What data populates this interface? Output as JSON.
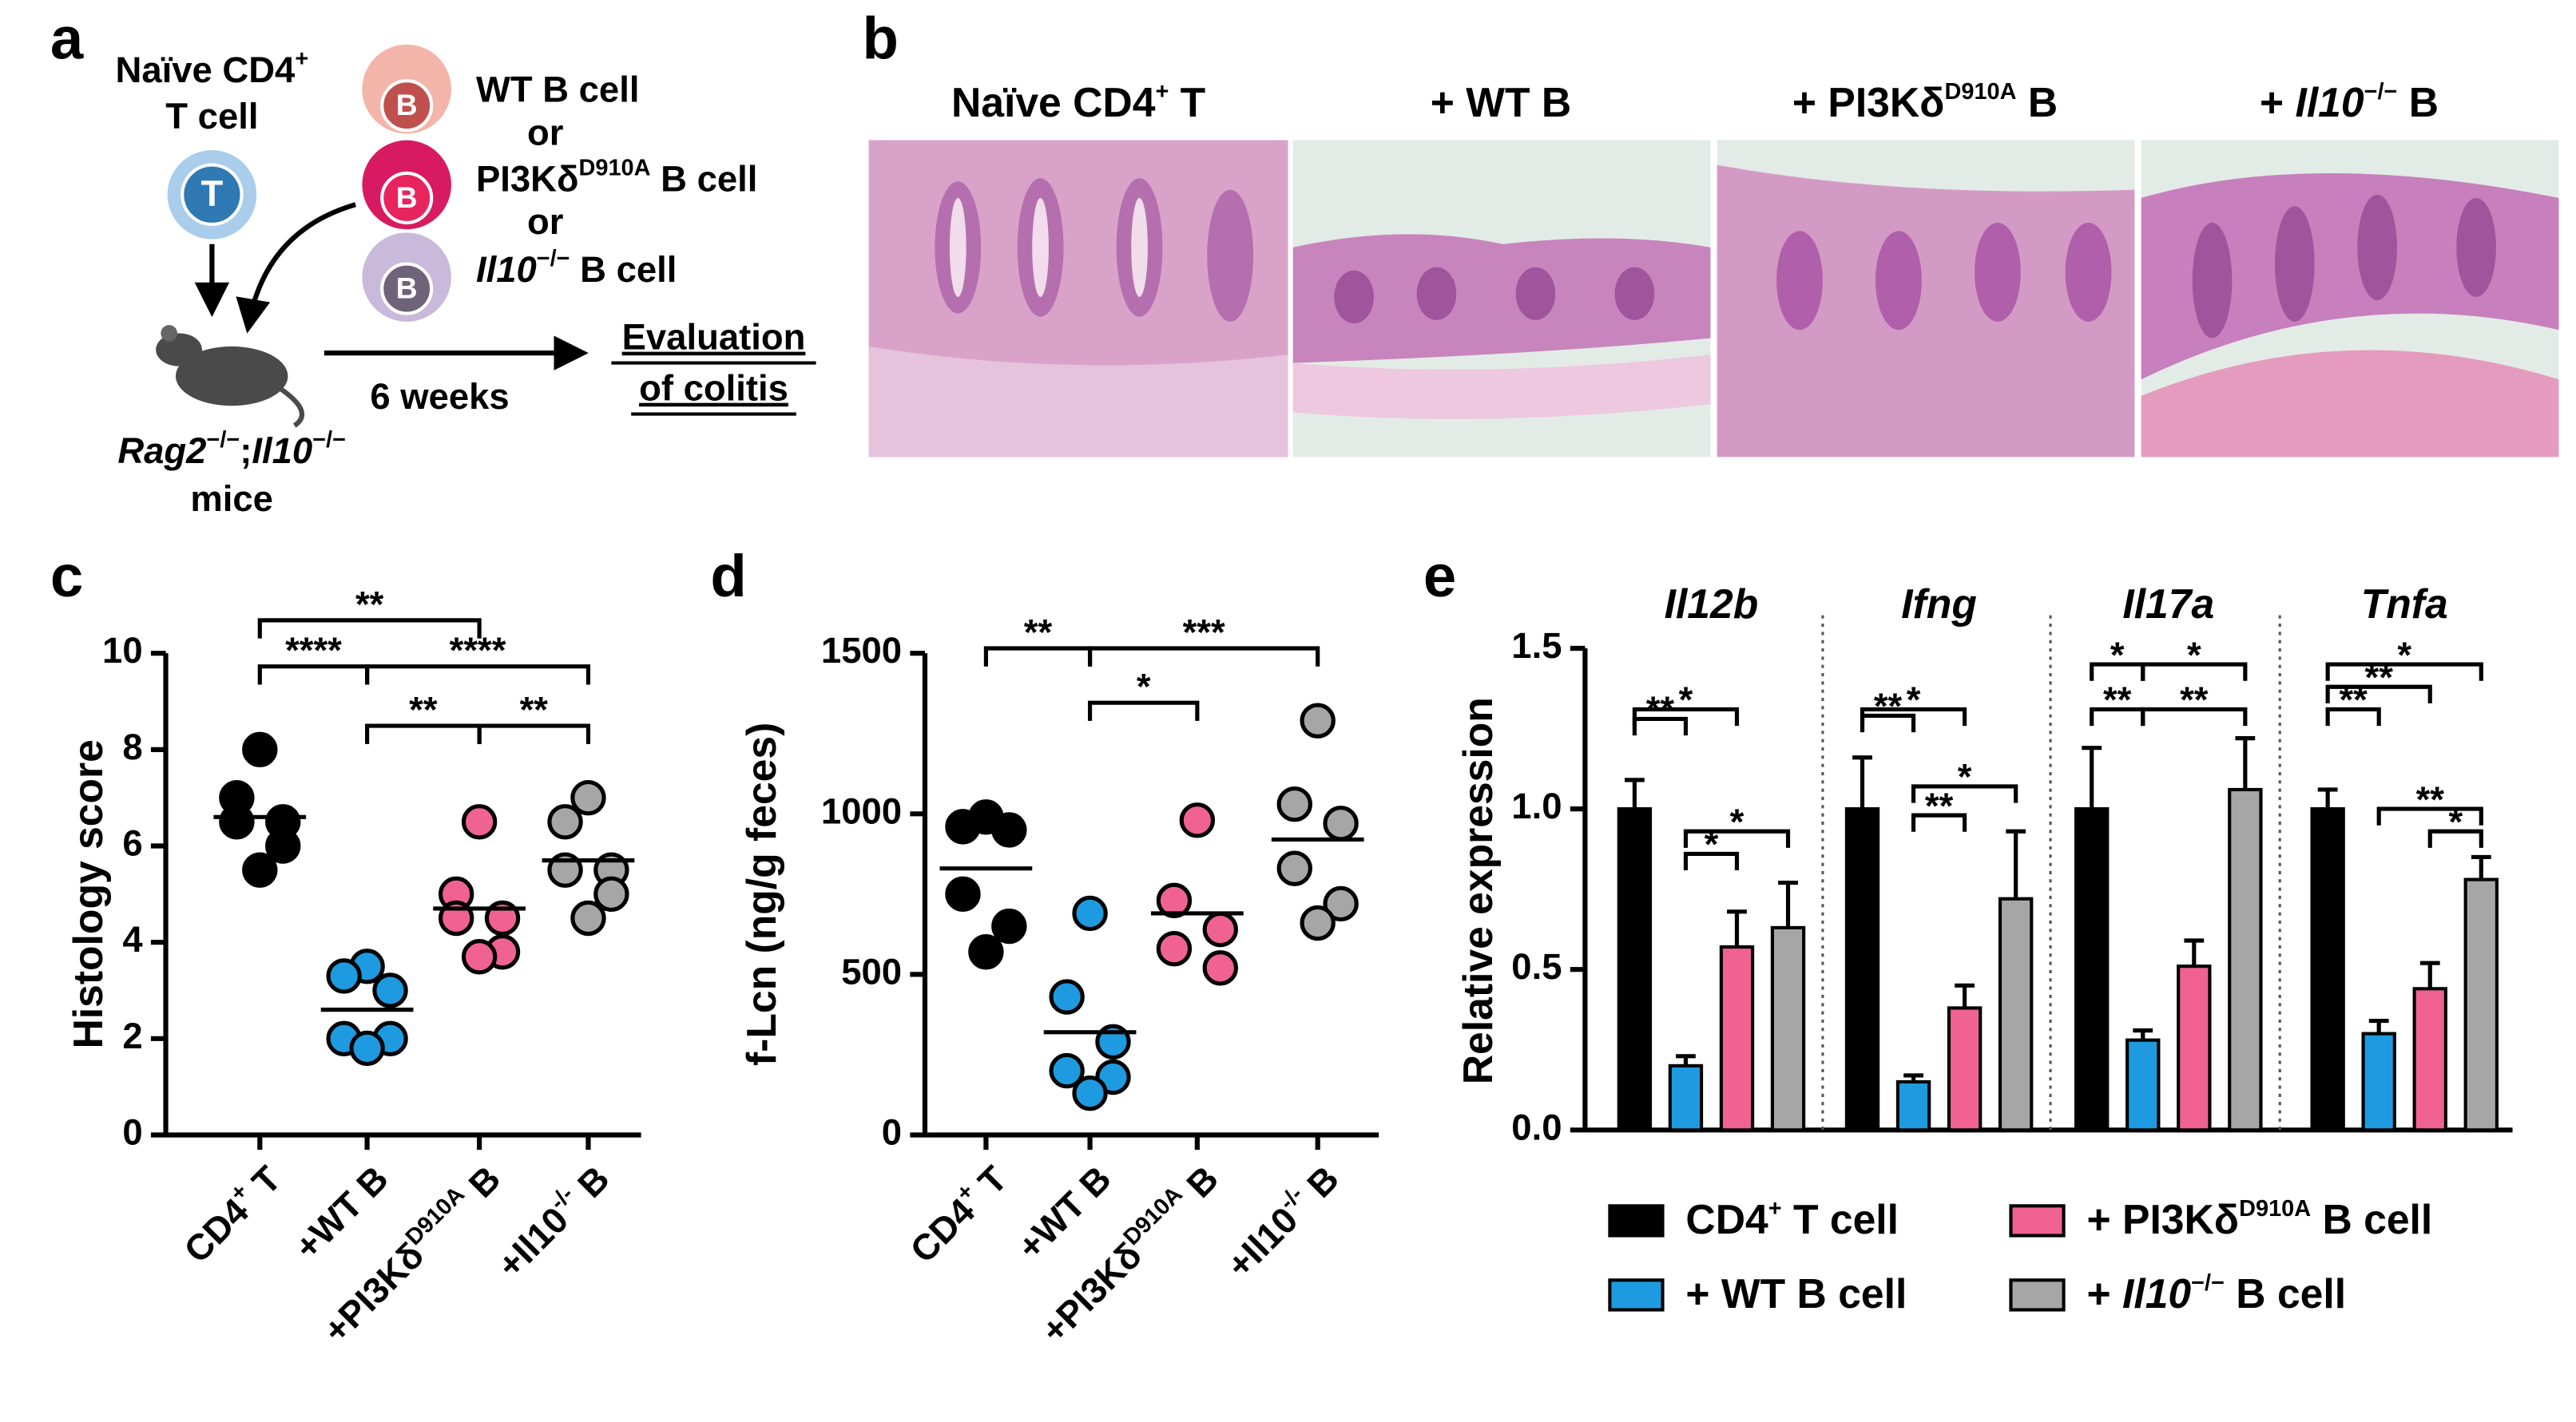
{
  "panel_labels": [
    "a",
    "b",
    "c",
    "d",
    "e"
  ],
  "diagram": {
    "t_cell": {
      "title": [
        "Naïve CD4",
        "+"
      ],
      "subtitle": "T cell",
      "badge": "T"
    },
    "b_cells": [
      {
        "badge": "B",
        "label": [
          "WT B cell"
        ]
      },
      {
        "badge": "B",
        "label": [
          "PI3Kδ",
          "D910A",
          " B cell"
        ]
      },
      {
        "badge": "B",
        "label": [
          "Il10",
          "−/−",
          " B cell"
        ]
      }
    ],
    "or": [
      "or",
      "or"
    ],
    "recipient": {
      "name": [
        "Rag2",
        "−/−",
        ";",
        "Il10",
        "−/−"
      ],
      "subtitle": "mice"
    },
    "duration": "6 weeks",
    "outcome": [
      "Evaluation",
      "of colitis"
    ]
  },
  "histology": {
    "titles": [
      [
        "Naïve CD4",
        "+",
        " T"
      ],
      [
        "+ WT B"
      ],
      [
        "+ PI3Kδ",
        "D910A",
        " B"
      ],
      [
        "+ ",
        "Il10",
        "−/−",
        " B"
      ]
    ]
  },
  "chart_data": [
    {
      "type": "dot",
      "ylabel": "Histology score",
      "categories": [
        [
          "CD4",
          "+",
          " T"
        ],
        [
          "+WT B"
        ],
        [
          "+PI3Kδ",
          "D910A",
          " B"
        ],
        [
          "+Il10",
          "-/-",
          " B"
        ]
      ],
      "colors": [
        "#000000",
        "#1e9be0",
        "#f06292",
        "#a6a6a6"
      ],
      "values": [
        [
          8.0,
          7.0,
          6.5,
          6.5,
          6.0,
          5.5
        ],
        [
          3.5,
          3.3,
          3.0,
          2.0,
          2.0,
          1.8
        ],
        [
          6.5,
          5.0,
          4.5,
          4.5,
          3.8,
          3.7
        ],
        [
          7.0,
          6.5,
          5.5,
          5.5,
          5.0,
          4.5
        ]
      ],
      "means": [
        6.6,
        2.6,
        4.7,
        5.7
      ],
      "ylim": [
        0,
        10
      ],
      "yticks": [
        0,
        2,
        4,
        6,
        8,
        10
      ],
      "significance": [
        "**",
        "****",
        "****",
        "**",
        "**"
      ]
    },
    {
      "type": "dot",
      "ylabel": "f-Lcn (ng/g feces)",
      "categories": [
        [
          "CD4",
          "+",
          " T"
        ],
        [
          "+WT B"
        ],
        [
          "+PI3Kδ",
          "D910A",
          " B"
        ],
        [
          "+Il10",
          "-/-",
          " B"
        ]
      ],
      "colors": [
        "#000000",
        "#1e9be0",
        "#f06292",
        "#a6a6a6"
      ],
      "values": [
        [
          990,
          960,
          950,
          750,
          650,
          570
        ],
        [
          690,
          430,
          290,
          200,
          180,
          130
        ],
        [
          980,
          730,
          640,
          580,
          520
        ],
        [
          1290,
          1030,
          970,
          830,
          720,
          660
        ]
      ],
      "means": [
        830,
        320,
        690,
        920
      ],
      "ylim": [
        0,
        1500
      ],
      "yticks": [
        0,
        500,
        1000,
        1500
      ],
      "significance": [
        "**",
        "***",
        "*"
      ]
    },
    {
      "type": "bar",
      "ylabel": "Relative expression",
      "categories": [
        "Il12b",
        "Ifng",
        "Il17a",
        "Tnfa"
      ],
      "series": [
        {
          "name": [
            "CD4",
            "+",
            " T cell"
          ],
          "color": "#000000",
          "values": [
            1.0,
            1.0,
            1.0,
            1.0
          ],
          "errors": [
            0.09,
            0.16,
            0.19,
            0.06
          ]
        },
        {
          "name": [
            "+ WT B cell"
          ],
          "color": "#1e9be0",
          "values": [
            0.2,
            0.15,
            0.28,
            0.3
          ],
          "errors": [
            0.03,
            0.02,
            0.03,
            0.04
          ]
        },
        {
          "name": [
            "+ PI3Kδ",
            "D910A",
            " B cell"
          ],
          "color": "#f06292",
          "values": [
            0.57,
            0.38,
            0.51,
            0.44
          ],
          "errors": [
            0.11,
            0.07,
            0.08,
            0.08
          ]
        },
        {
          "name": [
            "+ ",
            "Il10",
            "−/−",
            " B cell"
          ],
          "color": "#a6a6a6",
          "values": [
            0.63,
            0.72,
            1.06,
            0.78
          ],
          "errors": [
            0.14,
            0.21,
            0.16,
            0.07
          ]
        }
      ],
      "ylim": [
        0,
        1.5
      ],
      "yticks": [
        {
          "value": 0,
          "label": "0.0"
        },
        0.5,
        {
          "value": 1,
          "label": "1.0"
        },
        1.5
      ],
      "significance": [
        [
          "**",
          "*",
          "*",
          "*"
        ],
        [
          "**",
          "*",
          "**",
          "*"
        ],
        [
          "*",
          "*",
          "**",
          "**"
        ],
        [
          "*",
          "**",
          "**",
          "**",
          "*"
        ]
      ]
    }
  ]
}
